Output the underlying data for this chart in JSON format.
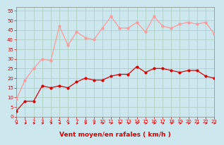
{
  "x": [
    0,
    1,
    2,
    3,
    4,
    5,
    6,
    7,
    8,
    9,
    10,
    11,
    12,
    13,
    14,
    15,
    16,
    17,
    18,
    19,
    20,
    21,
    22,
    23
  ],
  "wind_avg": [
    3,
    8,
    8,
    16,
    15,
    16,
    15,
    18,
    20,
    19,
    19,
    21,
    22,
    22,
    26,
    23,
    25,
    25,
    24,
    23,
    24,
    24,
    21,
    20
  ],
  "wind_gust": [
    9,
    19,
    25,
    30,
    29,
    47,
    37,
    44,
    41,
    40,
    46,
    52,
    46,
    46,
    49,
    44,
    52,
    47,
    46,
    48,
    49,
    48,
    49,
    43
  ],
  "avg_color": "#dd0000",
  "gust_color": "#ff9999",
  "dir_color": "#dd0000",
  "bg_color": "#cce8ee",
  "grid_color": "#aaccbb",
  "xlabel": "Vent moyen/en rafales ( km/h )",
  "ylim": [
    0,
    57
  ],
  "xlim": [
    0,
    23
  ],
  "yticks": [
    0,
    5,
    10,
    15,
    20,
    25,
    30,
    35,
    40,
    45,
    50,
    55
  ],
  "xticks": [
    0,
    1,
    2,
    3,
    4,
    5,
    6,
    7,
    8,
    9,
    10,
    11,
    12,
    13,
    14,
    15,
    16,
    17,
    18,
    19,
    20,
    21,
    22,
    23
  ],
  "tick_fontsize": 5.0,
  "xlabel_fontsize": 6.5,
  "spine_color": "#888888"
}
